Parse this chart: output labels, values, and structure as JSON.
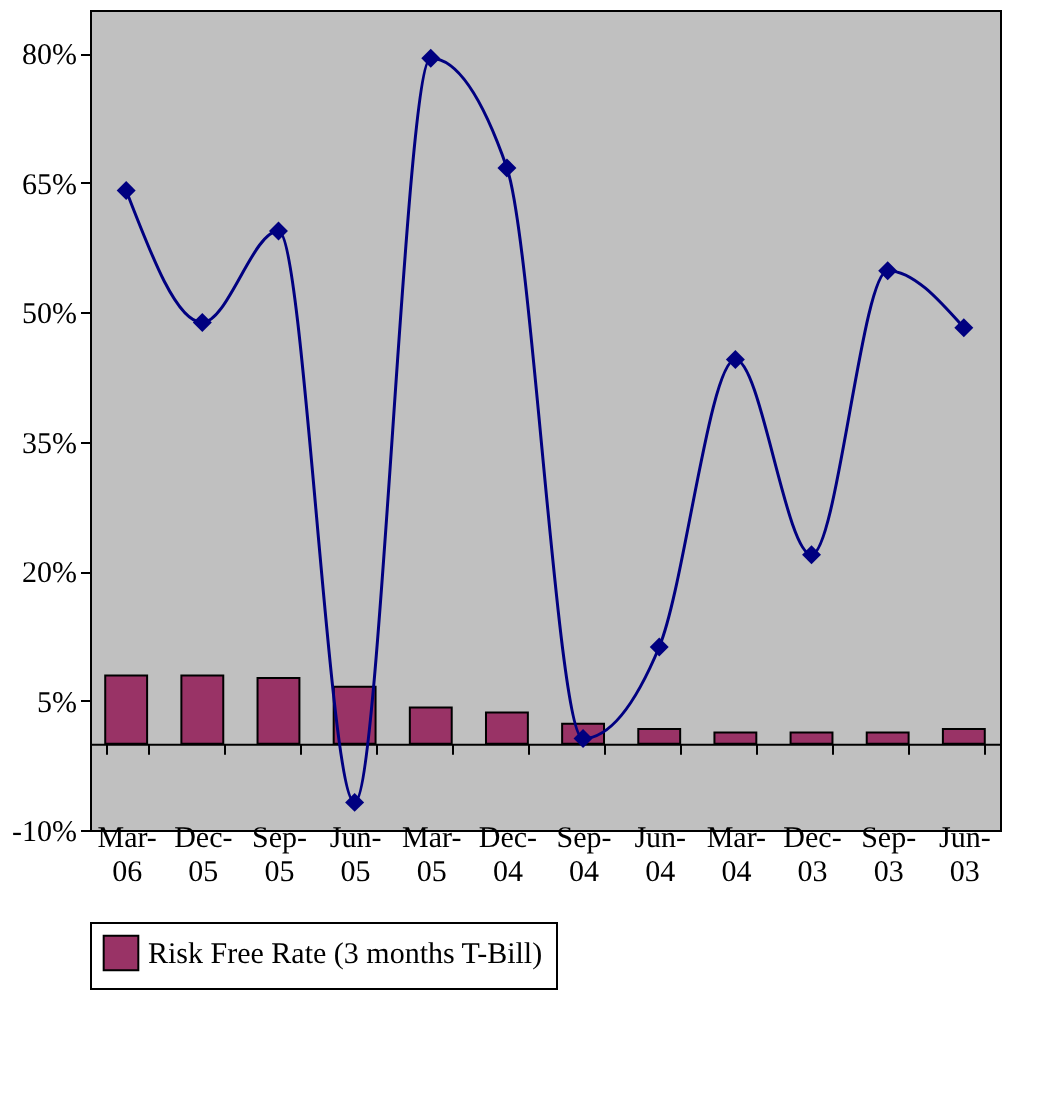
{
  "chart_data": {
    "type": "bar",
    "categories": [
      "Mar-06",
      "Dec-05",
      "Sep-05",
      "Jun-05",
      "Mar-05",
      "Dec-04",
      "Sep-04",
      "Jun-04",
      "Mar-04",
      "Dec-03",
      "Sep-03",
      "Jun-03"
    ],
    "series": [
      {
        "name": "Risk Free Rate (3 months T-Bill)",
        "color": "#993366",
        "values": [
          7.9,
          7.9,
          7.6,
          6.6,
          4.2,
          3.6,
          2.3,
          1.7,
          1.3,
          1.3,
          1.3,
          1.7
        ]
      },
      {
        "type": "line",
        "color": "#000080",
        "marker": "diamond",
        "line_style": "solid",
        "values": [
          64.1,
          48.8,
          59.4,
          -6.8,
          79.4,
          66.7,
          0.6,
          11.2,
          44.5,
          21.9,
          54.8,
          48.2
        ]
      }
    ],
    "ylim": [
      -10,
      85
    ],
    "yticks": [
      {
        "value": -10,
        "label": "-10%"
      },
      {
        "value": 5,
        "label": "5%"
      },
      {
        "value": 20,
        "label": "20%"
      },
      {
        "value": 35,
        "label": "35%"
      },
      {
        "value": 50,
        "label": "50%"
      },
      {
        "value": 65,
        "label": "65%"
      },
      {
        "value": 80,
        "label": "80%"
      }
    ],
    "grid": false,
    "legend": "bottom"
  }
}
